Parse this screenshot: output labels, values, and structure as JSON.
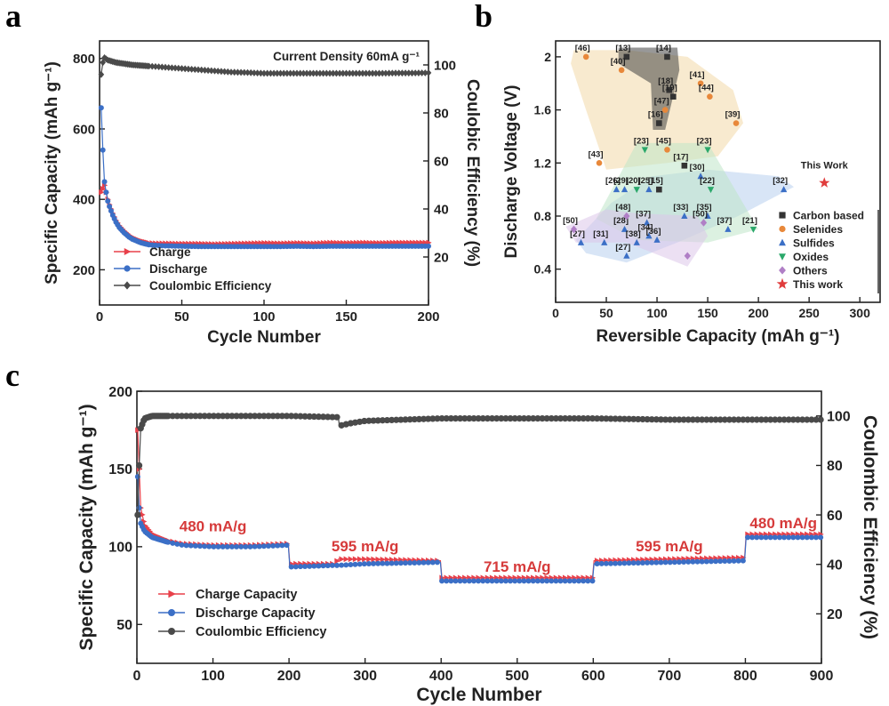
{
  "panels": {
    "a": "a",
    "b": "b",
    "c": "c"
  },
  "chart_data": [
    {
      "type": "line",
      "panel": "a",
      "title": "",
      "annotation": "Current Density 60mA g⁻¹",
      "xlabel": "Cycle Number",
      "ylabel": "Specific Capacity (mAh g⁻¹)",
      "y2label": "Coulobic Efficiency (%)",
      "xlim": [
        0,
        200
      ],
      "ylim": [
        100,
        850
      ],
      "y2lim": [
        0,
        110
      ],
      "xticks": [
        0,
        50,
        100,
        150,
        200
      ],
      "yticks": [
        200,
        400,
        600,
        800
      ],
      "y2ticks": [
        20,
        40,
        60,
        80,
        100
      ],
      "legend_position": "bottom-left",
      "series": [
        {
          "name": "Charge",
          "axis": "left",
          "color": "#e8404a",
          "marker": "triangle-right",
          "x": [
            1,
            2,
            3,
            4,
            5,
            6,
            8,
            10,
            12,
            15,
            18,
            20,
            25,
            30,
            35,
            40,
            50,
            60,
            70,
            80,
            90,
            100,
            110,
            120,
            130,
            140,
            150,
            160,
            170,
            180,
            190,
            200
          ],
          "values": [
            420,
            430,
            440,
            420,
            400,
            385,
            360,
            340,
            325,
            310,
            298,
            292,
            282,
            276,
            275,
            275,
            274,
            274,
            273,
            274,
            275,
            276,
            275,
            276,
            275,
            277,
            276,
            277,
            276,
            277,
            277,
            277
          ]
        },
        {
          "name": "Discharge",
          "axis": "left",
          "color": "#3b6fc6",
          "marker": "circle",
          "x": [
            1,
            2,
            3,
            4,
            5,
            6,
            8,
            10,
            12,
            15,
            18,
            20,
            25,
            30,
            35,
            40,
            50,
            60,
            70,
            80,
            90,
            100,
            110,
            120,
            130,
            140,
            150,
            160,
            170,
            180,
            190,
            200
          ],
          "values": [
            660,
            540,
            450,
            420,
            395,
            380,
            355,
            335,
            320,
            305,
            293,
            287,
            277,
            271,
            269,
            268,
            267,
            266,
            266,
            266,
            266,
            266,
            266,
            267,
            266,
            267,
            267,
            267,
            267,
            267,
            267,
            267
          ]
        },
        {
          "name": "Coulombic Efficiency",
          "axis": "right",
          "color": "#4a4a4a",
          "marker": "diamond",
          "x": [
            1,
            2,
            3,
            5,
            10,
            20,
            30,
            40,
            50,
            60,
            70,
            80,
            90,
            100,
            110,
            120,
            130,
            140,
            150,
            160,
            170,
            180,
            190,
            200
          ],
          "values": [
            96,
            101,
            103,
            102,
            101,
            100,
            99.5,
            99,
            98.5,
            98,
            97.5,
            97,
            96.8,
            96.5,
            96.5,
            96.5,
            96.5,
            96.5,
            96.5,
            96.5,
            96.5,
            96.6,
            96.6,
            96.7
          ]
        }
      ]
    },
    {
      "type": "scatter",
      "panel": "b",
      "xlabel": "Reversible Capacity (mAh g⁻¹)",
      "ylabel": "Discharge Voltage (V)",
      "xlim": [
        0,
        320
      ],
      "ylim": [
        0.15,
        2.12
      ],
      "xticks": [
        0,
        50,
        100,
        150,
        200,
        250,
        300
      ],
      "yticks": [
        0.4,
        0.8,
        1.2,
        1.6,
        2.0
      ],
      "legend_position": "bottom-right",
      "annotation": "This Work",
      "series": [
        {
          "name": "Carbon based",
          "color": "#333333",
          "marker": "square",
          "points": [
            [
              70,
              2.0,
              "[13]"
            ],
            [
              110,
              2.0,
              "[14]"
            ],
            [
              112,
              1.75,
              "[18]"
            ],
            [
              116,
              1.7,
              "[19]"
            ],
            [
              102,
              1.5,
              "[16]"
            ],
            [
              127,
              1.18,
              "[17]"
            ],
            [
              102,
              1.0,
              "[15]"
            ]
          ]
        },
        {
          "name": "Selenides",
          "color": "#e8883a",
          "marker": "circle",
          "points": [
            [
              30,
              2.0,
              "[46]"
            ],
            [
              65,
              1.9,
              "[40]"
            ],
            [
              143,
              1.8,
              "[41]"
            ],
            [
              152,
              1.7,
              "[44]"
            ],
            [
              108,
              1.6,
              "[47]"
            ],
            [
              178,
              1.5,
              "[39]"
            ],
            [
              110,
              1.3,
              "[45]"
            ],
            [
              43,
              1.2,
              "[43]"
            ]
          ]
        },
        {
          "name": "Sulfides",
          "color": "#3b6fc6",
          "marker": "triangle-up",
          "points": [
            [
              60,
              1.0,
              "[26]"
            ],
            [
              68,
              1.0,
              "[29]"
            ],
            [
              92,
              1.0,
              "[25]"
            ],
            [
              143,
              1.1,
              "[30]"
            ],
            [
              225,
              1.0,
              "[32]"
            ],
            [
              127,
              0.8,
              "[33]"
            ],
            [
              150,
              0.8,
              "[35]"
            ],
            [
              170,
              0.7,
              "[37]"
            ],
            [
              90,
              0.75,
              "[37]"
            ],
            [
              68,
              0.7,
              "[28]"
            ],
            [
              25,
              0.6,
              "[27]"
            ],
            [
              48,
              0.6,
              "[31]"
            ],
            [
              80,
              0.6,
              "[38]"
            ],
            [
              92,
              0.65,
              "[34]"
            ],
            [
              100,
              0.62,
              "[36]"
            ],
            [
              70,
              0.5,
              "[27]"
            ]
          ]
        },
        {
          "name": "Oxides",
          "color": "#2aa86a",
          "marker": "triangle-down",
          "points": [
            [
              88,
              1.3,
              "[23]"
            ],
            [
              150,
              1.3,
              "[23]"
            ],
            [
              80,
              1.0,
              "[20]"
            ],
            [
              153,
              1.0,
              "[22]"
            ],
            [
              195,
              0.7,
              "[21]"
            ]
          ]
        },
        {
          "name": "Others",
          "color": "#b07fc6",
          "marker": "diamond",
          "points": [
            [
              18,
              0.7,
              "[50]"
            ],
            [
              70,
              0.8,
              "[48]"
            ],
            [
              146,
              0.75,
              "[50]"
            ],
            [
              130,
              0.5,
              ""
            ]
          ]
        },
        {
          "name": "This work",
          "color": "#e03c3c",
          "marker": "star",
          "points": [
            [
              265,
              1.05,
              ""
            ]
          ]
        }
      ]
    },
    {
      "type": "line",
      "panel": "c",
      "xlabel": "Cycle Number",
      "ylabel": "Specific Capacity (mAh g⁻¹)",
      "y2label": "Coulombic Efficiency (%)",
      "xlim": [
        0,
        900
      ],
      "ylim": [
        25,
        200
      ],
      "y2lim": [
        0,
        110
      ],
      "xticks": [
        0,
        100,
        200,
        300,
        400,
        500,
        600,
        700,
        800,
        900
      ],
      "yticks": [
        50,
        100,
        150,
        200
      ],
      "y2ticks": [
        20,
        40,
        60,
        80,
        100
      ],
      "legend_position": "bottom-left",
      "rate_labels": [
        {
          "text": "480 mA/g",
          "x": 100,
          "y": 110
        },
        {
          "text": "595 mA/g",
          "x": 300,
          "y": 97
        },
        {
          "text": "715 mA/g",
          "x": 500,
          "y": 84
        },
        {
          "text": "595 mA/g",
          "x": 700,
          "y": 97
        },
        {
          "text": "480 mA/g",
          "x": 850,
          "y": 112
        }
      ],
      "series": [
        {
          "name": "Charge Capacity",
          "axis": "left",
          "color": "#e8404a",
          "marker": "triangle-right",
          "x": [
            1,
            3,
            5,
            10,
            20,
            40,
            60,
            100,
            150,
            199,
            201,
            260,
            265,
            300,
            399,
            401,
            500,
            599,
            601,
            700,
            799,
            801,
            850,
            900
          ],
          "values": [
            175,
            150,
            125,
            114,
            108,
            104,
            102,
            101,
            101,
            102,
            89,
            89,
            92,
            92,
            91,
            80,
            80,
            80,
            91,
            92,
            93,
            108,
            108,
            108
          ]
        },
        {
          "name": "Discharge Capacity",
          "axis": "left",
          "color": "#3b6fc6",
          "marker": "circle",
          "x": [
            1,
            3,
            5,
            10,
            20,
            40,
            60,
            100,
            150,
            199,
            201,
            260,
            265,
            300,
            399,
            401,
            500,
            599,
            601,
            700,
            799,
            801,
            850,
            900
          ],
          "values": [
            145,
            125,
            115,
            110,
            106,
            103,
            101,
            100,
            100,
            101,
            87,
            88,
            88,
            89,
            90,
            78,
            78,
            78,
            89,
            90,
            91,
            106,
            106,
            106
          ]
        },
        {
          "name": "Coulombic Efficiency",
          "axis": "right",
          "color": "#4a4a4a",
          "marker": "circle",
          "x": [
            1,
            3,
            5,
            10,
            20,
            50,
            100,
            150,
            200,
            265,
            266,
            280,
            300,
            350,
            400,
            500,
            600,
            700,
            800,
            900
          ],
          "values": [
            60,
            80,
            95,
            99,
            100,
            100,
            100,
            100,
            100,
            99.5,
            96,
            97,
            98,
            98.5,
            99,
            99,
            99,
            98.5,
            98.5,
            98.5
          ]
        }
      ]
    }
  ]
}
